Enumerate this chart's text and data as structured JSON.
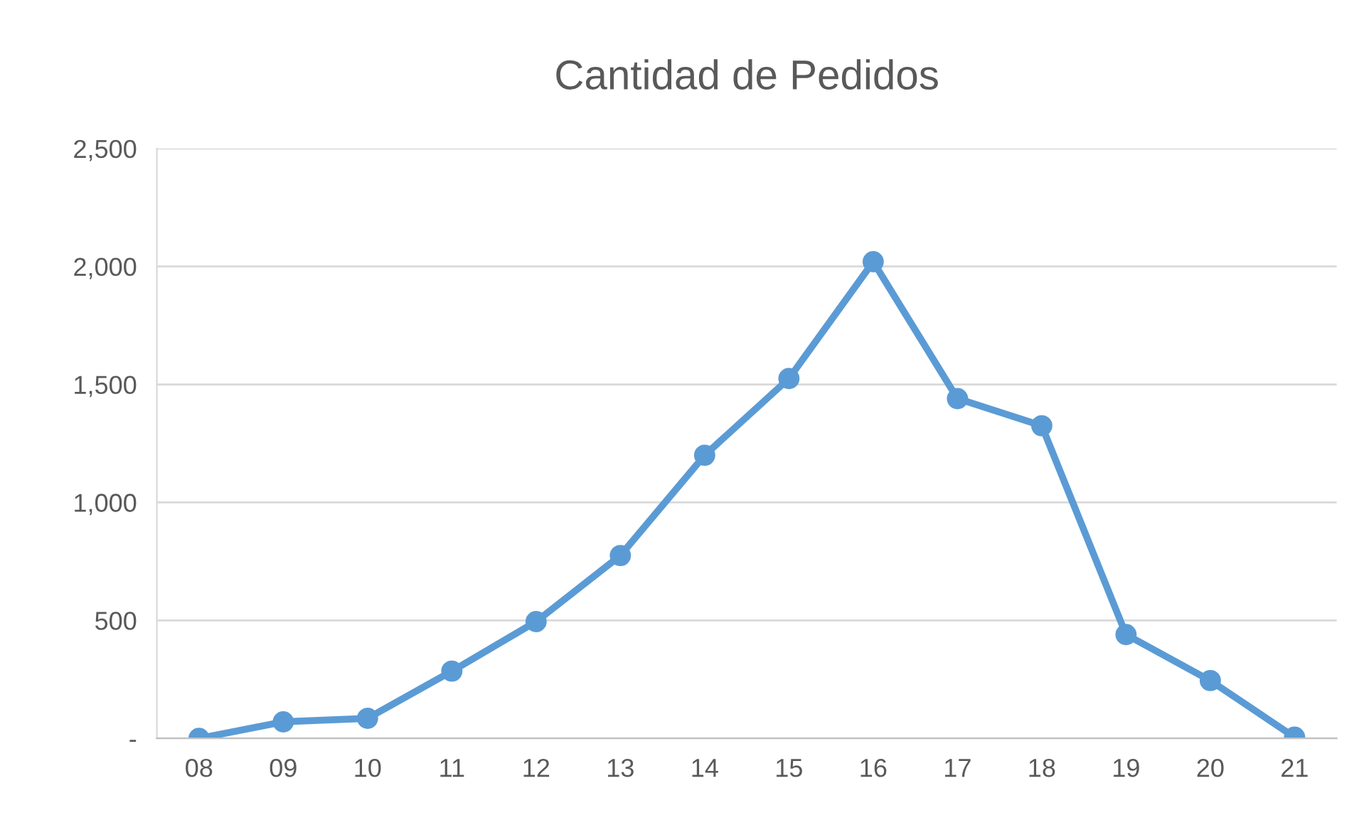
{
  "chart_data": {
    "type": "line",
    "title": "Cantidad de Pedidos",
    "categories": [
      "08",
      "09",
      "10",
      "11",
      "12",
      "13",
      "14",
      "15",
      "16",
      "17",
      "18",
      "19",
      "20",
      "21"
    ],
    "series": [
      {
        "color": "#5b9bd5",
        "values": [
          0,
          70,
          85,
          285,
          495,
          775,
          1200,
          1525,
          2020,
          1440,
          1325,
          440,
          245,
          5
        ]
      }
    ],
    "ylim": [
      0,
      2500
    ],
    "yticks": [
      {
        "value": 0,
        "label": "-"
      },
      500,
      {
        "value": 1000,
        "label": "1,000"
      },
      {
        "value": 1500,
        "label": "1,500"
      },
      {
        "value": 2000,
        "label": "2,000"
      },
      {
        "value": 2500,
        "label": "2,500"
      }
    ],
    "grid": "y",
    "marker": "circle",
    "line_style": "solid"
  }
}
